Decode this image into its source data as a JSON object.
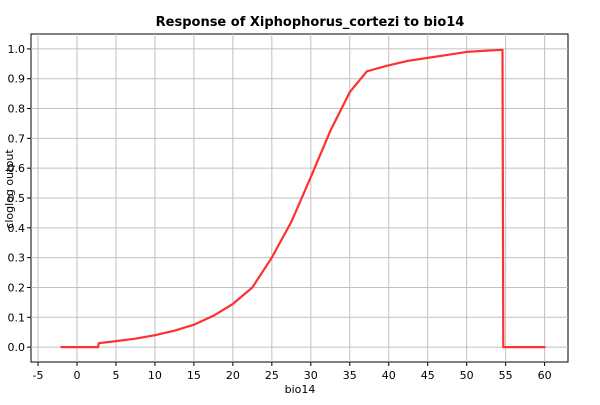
{
  "chart_data": {
    "type": "line",
    "title": "Response of Xiphophorus_cortezi to bio14",
    "xlabel": "bio14",
    "ylabel": "cloglog output",
    "xlim": [
      -5.9,
      63
    ],
    "ylim": [
      -0.05,
      1.05
    ],
    "x_ticks": [
      -5,
      0,
      5,
      10,
      15,
      20,
      25,
      30,
      35,
      40,
      45,
      50,
      55,
      60
    ],
    "y_ticks": [
      0.0,
      0.1,
      0.2,
      0.3,
      0.4,
      0.5,
      0.6,
      0.7,
      0.8,
      0.9,
      1.0
    ],
    "x_tick_labels": [
      "-5",
      "0",
      "5",
      "10",
      "15",
      "20",
      "25",
      "30",
      "35",
      "40",
      "45",
      "50",
      "55",
      "60"
    ],
    "y_tick_labels": [
      "0.0",
      "0.1",
      "0.2",
      "0.3",
      "0.4",
      "0.5",
      "0.6",
      "0.7",
      "0.8",
      "0.9",
      "1.0"
    ],
    "grid": true,
    "legend": "none",
    "line_color": "#ff3030",
    "series": [
      {
        "x": [
          -2,
          2.7,
          2.8,
          5,
          7.5,
          10,
          12.5,
          15,
          17.5,
          20,
          22.5,
          25,
          27.5,
          30,
          32.5,
          35,
          37.2,
          40,
          42.5,
          45,
          47.5,
          50,
          52.5,
          54.6,
          54.7,
          55,
          60
        ],
        "y": [
          0.0,
          0.0,
          0.013,
          0.02,
          0.028,
          0.04,
          0.055,
          0.075,
          0.105,
          0.145,
          0.2,
          0.3,
          0.42,
          0.57,
          0.725,
          0.855,
          0.925,
          0.945,
          0.96,
          0.97,
          0.98,
          0.99,
          0.994,
          0.997,
          0.0,
          0.0,
          0.0
        ]
      }
    ]
  }
}
